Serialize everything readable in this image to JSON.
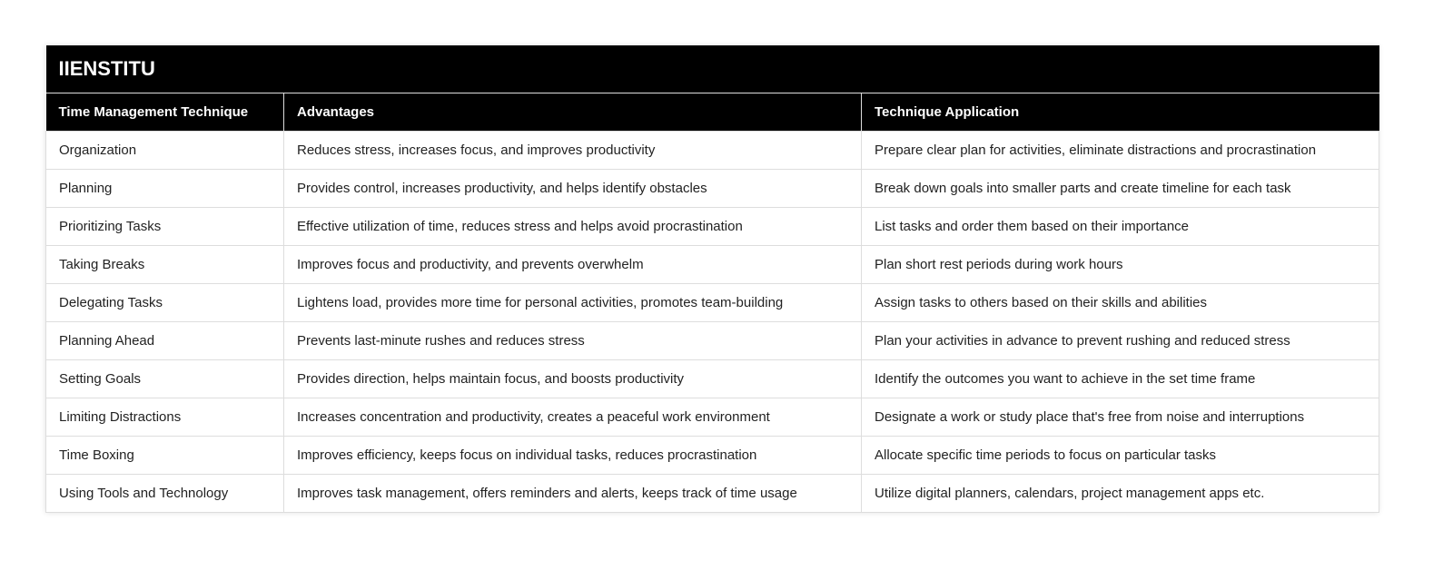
{
  "title": "IIENSTITU",
  "columns": [
    "Time Management Technique",
    "Advantages",
    "Technique Application"
  ],
  "rows": [
    [
      "Organization",
      "Reduces stress, increases focus, and improves productivity",
      "Prepare clear plan for activities, eliminate distractions and procrastination"
    ],
    [
      "Planning",
      "Provides control, increases productivity, and helps identify obstacles",
      "Break down goals into smaller parts and create timeline for each task"
    ],
    [
      "Prioritizing Tasks",
      "Effective utilization of time, reduces stress and helps avoid procrastination",
      "List tasks and order them based on their importance"
    ],
    [
      "Taking Breaks",
      "Improves focus and productivity, and prevents overwhelm",
      "Plan short rest periods during work hours"
    ],
    [
      "Delegating Tasks",
      "Lightens load, provides more time for personal activities, promotes team-building",
      "Assign tasks to others based on their skills and abilities"
    ],
    [
      "Planning Ahead",
      "Prevents last-minute rushes and reduces stress",
      "Plan your activities in advance to prevent rushing and reduced stress"
    ],
    [
      "Setting Goals",
      "Provides direction, helps maintain focus, and boosts productivity",
      "Identify the outcomes you want to achieve in the set time frame"
    ],
    [
      "Limiting Distractions",
      "Increases concentration and productivity, creates a peaceful work environment",
      "Designate a work or study place that's free from noise and interruptions"
    ],
    [
      "Time Boxing",
      "Improves efficiency, keeps focus on individual tasks, reduces procrastination",
      "Allocate specific time periods to focus on particular tasks"
    ],
    [
      "Using Tools and Technology",
      "Improves task management, offers reminders and alerts, keeps track of time usage",
      "Utilize digital planners, calendars, project management apps etc."
    ]
  ]
}
